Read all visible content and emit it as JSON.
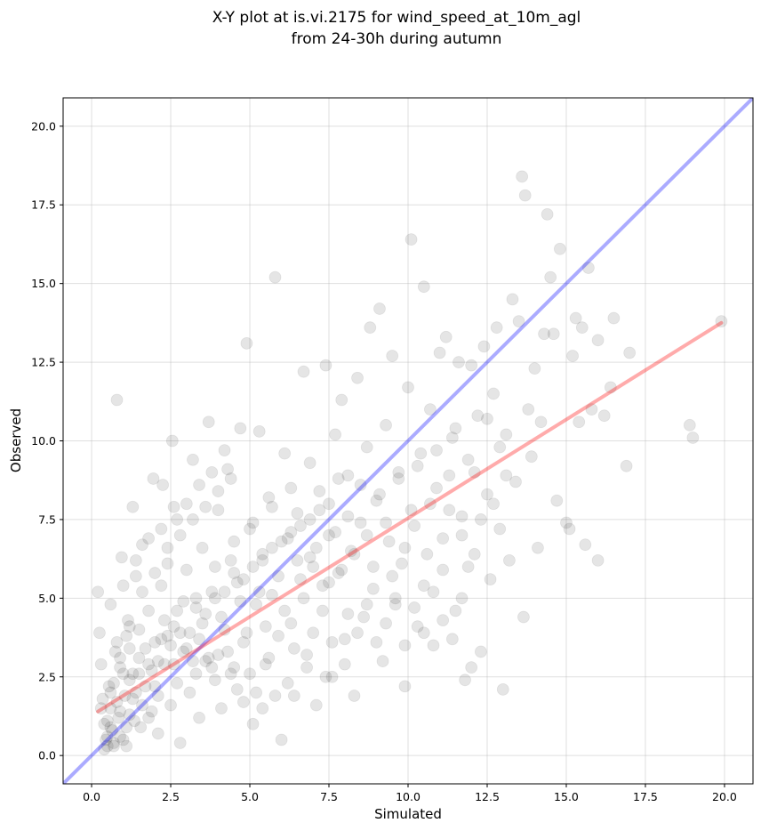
{
  "chart_data": {
    "type": "scatter",
    "title_lines": [
      "X-Y plot at is.vi.2175 for wind_speed_at_10m_agl",
      "from 24-30h during autumn"
    ],
    "xlabel": "Simulated",
    "ylabel": "Observed",
    "xlim": [
      -0.9,
      20.9
    ],
    "ylim": [
      -0.9,
      20.9
    ],
    "xticks": [
      0.0,
      2.5,
      5.0,
      7.5,
      10.0,
      12.5,
      15.0,
      17.5,
      20.0
    ],
    "yticks": [
      0.0,
      2.5,
      5.0,
      7.5,
      10.0,
      12.5,
      15.0,
      17.5,
      20.0
    ],
    "xtick_labels": [
      "0.0",
      "2.5",
      "5.0",
      "7.5",
      "10.0",
      "12.5",
      "15.0",
      "17.5",
      "20.0"
    ],
    "ytick_labels": [
      "0.0",
      "2.5",
      "5.0",
      "7.5",
      "10.0",
      "12.5",
      "15.0",
      "17.5",
      "20.0"
    ],
    "grid": true,
    "colors": {
      "points": "#000000",
      "identity_line": "#0000ff",
      "fit_line": "#ff0000"
    },
    "lines": [
      {
        "role": "identity",
        "x": [
          -0.9,
          20.9
        ],
        "y": [
          -0.9,
          20.9
        ]
      },
      {
        "role": "fit",
        "x": [
          0.2,
          19.9
        ],
        "y": [
          1.4,
          13.75
        ]
      }
    ],
    "points": [
      [
        0.2,
        5.2
      ],
      [
        0.25,
        3.9
      ],
      [
        0.3,
        2.9
      ],
      [
        0.35,
        1.8
      ],
      [
        0.4,
        1.0
      ],
      [
        0.45,
        0.5
      ],
      [
        0.5,
        0.3
      ],
      [
        0.55,
        2.2
      ],
      [
        0.6,
        1.5
      ],
      [
        0.65,
        0.8
      ],
      [
        0.7,
        0.4
      ],
      [
        0.75,
        3.3
      ],
      [
        0.8,
        11.3
      ],
      [
        0.85,
        1.2
      ],
      [
        0.9,
        0.6
      ],
      [
        0.95,
        6.3
      ],
      [
        1.0,
        2.6
      ],
      [
        1.05,
        1.9
      ],
      [
        1.1,
        0.3
      ],
      [
        1.15,
        4.3
      ],
      [
        1.2,
        2.4
      ],
      [
        1.3,
        7.9
      ],
      [
        1.35,
        1.1
      ],
      [
        1.4,
        5.7
      ],
      [
        1.5,
        3.1
      ],
      [
        1.55,
        0.9
      ],
      [
        1.6,
        6.7
      ],
      [
        1.7,
        2.2
      ],
      [
        1.8,
        4.6
      ],
      [
        1.9,
        1.4
      ],
      [
        1.95,
        8.8
      ],
      [
        2.0,
        3.6
      ],
      [
        2.1,
        0.7
      ],
      [
        2.2,
        5.4
      ],
      [
        2.25,
        8.6
      ],
      [
        2.3,
        2.9
      ],
      [
        2.4,
        6.1
      ],
      [
        2.5,
        1.6
      ],
      [
        2.55,
        10.0
      ],
      [
        2.6,
        4.1
      ],
      [
        2.7,
        7.5
      ],
      [
        2.8,
        0.4
      ],
      [
        2.9,
        3.3
      ],
      [
        3.0,
        5.9
      ],
      [
        3.1,
        2.0
      ],
      [
        3.2,
        9.4
      ],
      [
        3.3,
        4.7
      ],
      [
        3.4,
        1.2
      ],
      [
        3.5,
        6.6
      ],
      [
        3.6,
        3.0
      ],
      [
        3.7,
        10.6
      ],
      [
        3.8,
        5.2
      ],
      [
        3.9,
        2.4
      ],
      [
        4.0,
        7.8
      ],
      [
        4.1,
        1.5
      ],
      [
        4.2,
        4.0
      ],
      [
        4.3,
        9.1
      ],
      [
        4.4,
        6.2
      ],
      [
        4.5,
        2.8
      ],
      [
        4.6,
        5.5
      ],
      [
        4.7,
        10.4
      ],
      [
        4.8,
        3.6
      ],
      [
        4.9,
        13.1
      ],
      [
        5.0,
        7.2
      ],
      [
        5.1,
        1.0
      ],
      [
        5.2,
        4.8
      ],
      [
        5.3,
        10.3
      ],
      [
        5.4,
        6.4
      ],
      [
        5.5,
        2.9
      ],
      [
        5.6,
        8.2
      ],
      [
        5.7,
        5.1
      ],
      [
        5.8,
        15.2
      ],
      [
        5.9,
        3.8
      ],
      [
        6.0,
        0.5
      ],
      [
        6.1,
        9.6
      ],
      [
        6.2,
        6.9
      ],
      [
        6.3,
        4.2
      ],
      [
        6.4,
        1.9
      ],
      [
        6.5,
        7.7
      ],
      [
        6.6,
        5.6
      ],
      [
        6.7,
        12.2
      ],
      [
        6.8,
        3.2
      ],
      [
        6.9,
        9.3
      ],
      [
        7.0,
        6.0
      ],
      [
        7.1,
        1.6
      ],
      [
        7.2,
        8.4
      ],
      [
        7.3,
        4.6
      ],
      [
        7.4,
        12.4
      ],
      [
        7.5,
        7.0
      ],
      [
        7.6,
        2.5
      ],
      [
        7.7,
        10.2
      ],
      [
        7.8,
        5.8
      ],
      [
        7.9,
        11.3
      ],
      [
        8.0,
        3.7
      ],
      [
        8.1,
        8.9
      ],
      [
        8.2,
        6.5
      ],
      [
        8.3,
        1.9
      ],
      [
        8.4,
        12.0
      ],
      [
        8.5,
        7.4
      ],
      [
        8.6,
        4.4
      ],
      [
        8.7,
        9.8
      ],
      [
        8.8,
        13.6
      ],
      [
        8.9,
        5.3
      ],
      [
        9.0,
        8.1
      ],
      [
        9.1,
        14.2
      ],
      [
        9.2,
        3.0
      ],
      [
        9.3,
        10.5
      ],
      [
        9.4,
        6.8
      ],
      [
        9.5,
        12.7
      ],
      [
        9.6,
        4.8
      ],
      [
        9.7,
        9.0
      ],
      [
        9.8,
        6.1
      ],
      [
        9.9,
        2.2
      ],
      [
        10.0,
        11.7
      ],
      [
        10.1,
        16.4
      ],
      [
        10.2,
        7.3
      ],
      [
        10.3,
        4.1
      ],
      [
        10.4,
        9.6
      ],
      [
        10.5,
        14.9
      ],
      [
        10.6,
        6.4
      ],
      [
        10.7,
        11.0
      ],
      [
        10.8,
        3.5
      ],
      [
        10.9,
        8.5
      ],
      [
        11.0,
        12.8
      ],
      [
        11.1,
        5.9
      ],
      [
        11.2,
        13.3
      ],
      [
        11.3,
        7.8
      ],
      [
        11.4,
        10.1
      ],
      [
        11.5,
        4.6
      ],
      [
        11.6,
        12.5
      ],
      [
        11.7,
        7.0
      ],
      [
        11.8,
        2.4
      ],
      [
        11.9,
        9.4
      ],
      [
        12.0,
        12.4
      ],
      [
        12.1,
        6.4
      ],
      [
        12.2,
        10.8
      ],
      [
        12.3,
        3.3
      ],
      [
        12.4,
        13.0
      ],
      [
        12.5,
        8.3
      ],
      [
        12.6,
        5.6
      ],
      [
        12.7,
        11.5
      ],
      [
        12.8,
        13.6
      ],
      [
        12.9,
        7.2
      ],
      [
        13.0,
        2.1
      ],
      [
        13.1,
        10.2
      ],
      [
        13.2,
        6.2
      ],
      [
        13.3,
        14.5
      ],
      [
        13.4,
        8.7
      ],
      [
        13.5,
        13.8
      ],
      [
        13.6,
        18.4
      ],
      [
        13.65,
        4.4
      ],
      [
        13.7,
        17.8
      ],
      [
        13.8,
        11.0
      ],
      [
        13.9,
        9.5
      ],
      [
        14.0,
        12.3
      ],
      [
        14.1,
        6.6
      ],
      [
        14.2,
        10.6
      ],
      [
        14.3,
        13.4
      ],
      [
        14.4,
        17.2
      ],
      [
        14.5,
        15.2
      ],
      [
        14.6,
        13.4
      ],
      [
        14.7,
        8.1
      ],
      [
        14.8,
        16.1
      ],
      [
        15.0,
        7.4
      ],
      [
        15.1,
        7.2
      ],
      [
        15.2,
        12.7
      ],
      [
        15.3,
        13.9
      ],
      [
        15.4,
        10.6
      ],
      [
        15.5,
        13.6
      ],
      [
        15.6,
        6.7
      ],
      [
        15.7,
        15.5
      ],
      [
        15.8,
        11.0
      ],
      [
        16.0,
        13.2
      ],
      [
        16.0,
        6.2
      ],
      [
        16.2,
        10.8
      ],
      [
        16.4,
        11.7
      ],
      [
        16.5,
        13.9
      ],
      [
        16.9,
        9.2
      ],
      [
        17.0,
        12.8
      ],
      [
        18.9,
        10.5
      ],
      [
        19.0,
        10.1
      ],
      [
        19.9,
        13.8
      ],
      [
        0.4,
        0.2
      ],
      [
        0.6,
        0.9
      ],
      [
        0.8,
        1.7
      ],
      [
        1.0,
        0.5
      ],
      [
        1.2,
        1.3
      ],
      [
        1.4,
        2.0
      ],
      [
        0.5,
        1.1
      ],
      [
        0.7,
        2.3
      ],
      [
        0.9,
        3.1
      ],
      [
        1.1,
        3.8
      ],
      [
        1.3,
        1.8
      ],
      [
        1.5,
        2.6
      ],
      [
        1.7,
        3.4
      ],
      [
        1.9,
        2.7
      ],
      [
        2.1,
        1.9
      ],
      [
        2.3,
        4.3
      ],
      [
        2.5,
        3.5
      ],
      [
        2.7,
        2.3
      ],
      [
        2.9,
        4.9
      ],
      [
        3.1,
        3.9
      ],
      [
        3.3,
        2.6
      ],
      [
        3.5,
        4.2
      ],
      [
        3.7,
        3.1
      ],
      [
        3.9,
        5.0
      ],
      [
        4.1,
        4.4
      ],
      [
        4.3,
        3.3
      ],
      [
        4.5,
        5.8
      ],
      [
        4.7,
        4.9
      ],
      [
        4.9,
        3.9
      ],
      [
        5.1,
        6.0
      ],
      [
        5.3,
        5.2
      ],
      [
        5.5,
        4.1
      ],
      [
        5.7,
        6.6
      ],
      [
        5.9,
        5.7
      ],
      [
        6.1,
        4.6
      ],
      [
        6.3,
        7.1
      ],
      [
        6.5,
        6.2
      ],
      [
        6.7,
        5.0
      ],
      [
        6.9,
        7.5
      ],
      [
        7.1,
        6.6
      ],
      [
        7.3,
        5.4
      ],
      [
        7.5,
        8.0
      ],
      [
        7.7,
        7.1
      ],
      [
        7.9,
        5.9
      ],
      [
        8.1,
        7.6
      ],
      [
        8.3,
        6.4
      ],
      [
        8.5,
        8.6
      ],
      [
        8.7,
        7.0
      ],
      [
        8.9,
        6.0
      ],
      [
        9.1,
        8.3
      ],
      [
        9.3,
        7.4
      ],
      [
        9.5,
        5.7
      ],
      [
        9.7,
        8.8
      ],
      [
        9.9,
        6.6
      ],
      [
        10.1,
        7.8
      ],
      [
        10.3,
        9.2
      ],
      [
        10.5,
        5.4
      ],
      [
        10.7,
        8.0
      ],
      [
        10.9,
        9.7
      ],
      [
        11.1,
        6.9
      ],
      [
        11.3,
        8.9
      ],
      [
        11.5,
        10.4
      ],
      [
        11.7,
        7.6
      ],
      [
        11.9,
        6.0
      ],
      [
        12.1,
        9.0
      ],
      [
        12.3,
        7.5
      ],
      [
        12.5,
        10.7
      ],
      [
        12.7,
        8.0
      ],
      [
        12.9,
        9.8
      ],
      [
        13.1,
        8.9
      ],
      [
        0.3,
        1.5
      ],
      [
        0.6,
        2.0
      ],
      [
        0.9,
        2.8
      ],
      [
        1.2,
        3.4
      ],
      [
        1.5,
        4.0
      ],
      [
        1.8,
        1.2
      ],
      [
        2.1,
        3.0
      ],
      [
        2.4,
        3.8
      ],
      [
        2.7,
        4.6
      ],
      [
        3.0,
        3.4
      ],
      [
        3.3,
        5.0
      ],
      [
        3.6,
        4.5
      ],
      [
        3.9,
        6.0
      ],
      [
        4.2,
        5.2
      ],
      [
        4.5,
        6.8
      ],
      [
        4.8,
        5.6
      ],
      [
        5.1,
        7.4
      ],
      [
        5.4,
        6.2
      ],
      [
        5.7,
        7.9
      ],
      [
        6.0,
        6.8
      ],
      [
        6.3,
        8.5
      ],
      [
        6.6,
        7.3
      ],
      [
        6.9,
        6.3
      ],
      [
        7.2,
        7.8
      ],
      [
        7.5,
        5.5
      ],
      [
        7.8,
        8.8
      ],
      [
        8.1,
        4.5
      ],
      [
        8.4,
        3.9
      ],
      [
        8.7,
        4.8
      ],
      [
        9.0,
        3.6
      ],
      [
        9.3,
        4.2
      ],
      [
        9.6,
        5.0
      ],
      [
        9.9,
        3.5
      ],
      [
        10.2,
        4.7
      ],
      [
        10.5,
        3.9
      ],
      [
        10.8,
        5.2
      ],
      [
        11.1,
        4.3
      ],
      [
        11.4,
        3.7
      ],
      [
        11.7,
        5.0
      ],
      [
        12.0,
        2.8
      ],
      [
        0.5,
        0.6
      ],
      [
        0.7,
        0.3
      ],
      [
        0.9,
        1.4
      ],
      [
        1.1,
        0.9
      ],
      [
        1.3,
        2.6
      ],
      [
        1.6,
        1.6
      ],
      [
        1.8,
        2.9
      ],
      [
        2.0,
        2.2
      ],
      [
        2.2,
        3.7
      ],
      [
        2.6,
        2.9
      ],
      [
        2.8,
        3.9
      ],
      [
        3.2,
        3.0
      ],
      [
        3.4,
        3.7
      ],
      [
        3.8,
        2.8
      ],
      [
        4.0,
        3.2
      ],
      [
        4.4,
        2.6
      ],
      [
        4.6,
        2.1
      ],
      [
        4.8,
        1.7
      ],
      [
        5.0,
        2.6
      ],
      [
        5.2,
        2.0
      ],
      [
        5.4,
        1.5
      ],
      [
        5.6,
        3.1
      ],
      [
        5.8,
        1.9
      ],
      [
        6.2,
        2.3
      ],
      [
        6.4,
        3.4
      ],
      [
        6.8,
        2.8
      ],
      [
        7.0,
        3.9
      ],
      [
        7.4,
        2.5
      ],
      [
        7.6,
        3.6
      ],
      [
        8.0,
        2.9
      ],
      [
        0.6,
        4.8
      ],
      [
        0.8,
        3.6
      ],
      [
        1.0,
        5.4
      ],
      [
        1.2,
        4.1
      ],
      [
        1.4,
        6.2
      ],
      [
        1.6,
        5.2
      ],
      [
        1.8,
        6.9
      ],
      [
        2.0,
        5.8
      ],
      [
        2.2,
        7.2
      ],
      [
        2.4,
        6.6
      ],
      [
        2.6,
        7.9
      ],
      [
        2.8,
        7.0
      ],
      [
        3.0,
        8.0
      ],
      [
        3.2,
        7.5
      ],
      [
        3.4,
        8.6
      ],
      [
        3.6,
        7.9
      ],
      [
        3.8,
        9.0
      ],
      [
        4.0,
        8.4
      ],
      [
        4.2,
        9.7
      ],
      [
        4.4,
        8.8
      ]
    ]
  }
}
